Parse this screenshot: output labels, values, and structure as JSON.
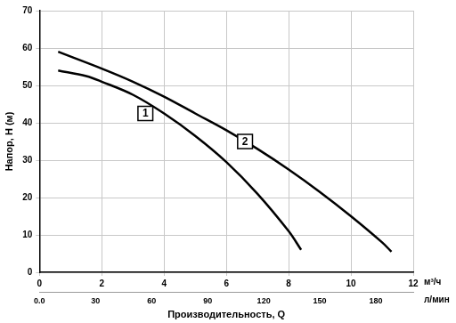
{
  "chart_data": {
    "type": "line",
    "xlabel": "Производительность, Q",
    "ylabel": "Напор, H (м)",
    "x_unit": "м³/ч",
    "x2_unit": "л/мин",
    "xlim": [
      0,
      12
    ],
    "xticks": [
      0,
      2,
      4,
      6,
      8,
      10,
      12
    ],
    "x2lim": [
      0,
      200
    ],
    "x2ticks": [
      {
        "value": 0,
        "label": "0.0"
      },
      30,
      60,
      90,
      120,
      150,
      180
    ],
    "ylim": [
      0,
      70
    ],
    "yticks": [
      0,
      10,
      20,
      30,
      40,
      50,
      60,
      70
    ],
    "grid": true,
    "legend": false,
    "series": [
      {
        "name": "1",
        "color": "#000000",
        "x": [
          0.6,
          1.5,
          2,
          3,
          4,
          5,
          6,
          7,
          8,
          8.4
        ],
        "values": [
          54,
          52.5,
          51,
          47.5,
          42.5,
          36.5,
          29.5,
          21,
          11,
          6
        ]
      },
      {
        "name": "2",
        "color": "#000000",
        "x": [
          0.6,
          2,
          3,
          4,
          5,
          6,
          7,
          8,
          9,
          10,
          11,
          11.3
        ],
        "values": [
          59,
          54.5,
          51,
          47,
          42.5,
          38,
          33,
          27.5,
          21.5,
          15,
          8,
          5.5
        ]
      }
    ],
    "annotations": [
      {
        "text": "1",
        "x": 3.4,
        "y": 42.5
      },
      {
        "text": "2",
        "x": 6.6,
        "y": 35
      }
    ]
  }
}
